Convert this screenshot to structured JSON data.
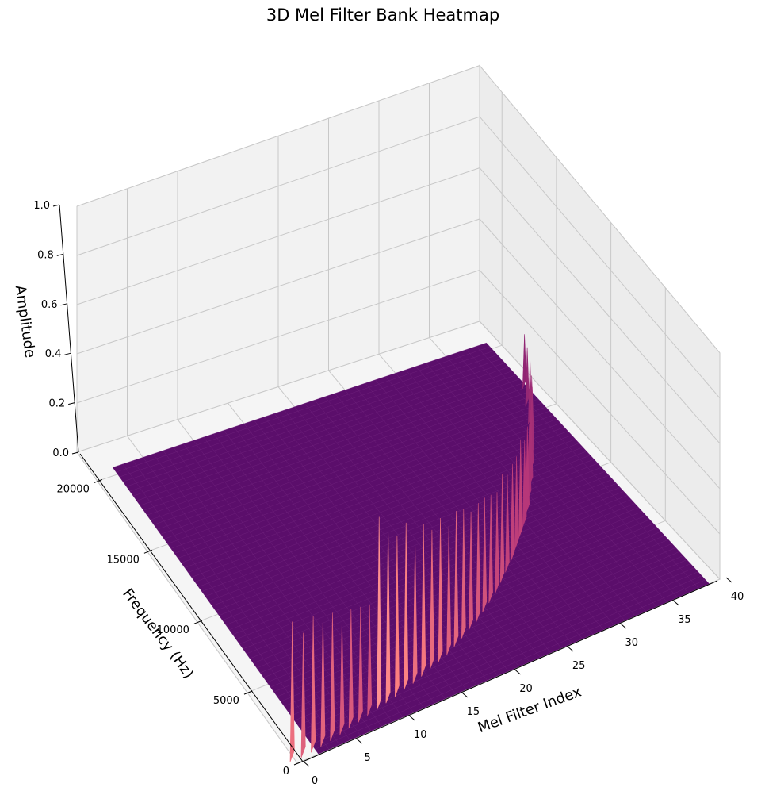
{
  "chart_data": {
    "type": "surface",
    "title": "3D Mel Filter Bank Heatmap",
    "xlabel": "Mel Filter Index",
    "ylabel": "Frequency (Hz)",
    "zlabel": "Amplitude",
    "x_ticks": [
      0,
      5,
      10,
      15,
      20,
      25,
      30,
      35,
      40
    ],
    "y_ticks": [
      0,
      5000,
      10000,
      15000,
      20000
    ],
    "z_ticks": [
      "0.0",
      "0.2",
      "0.4",
      "0.6",
      "0.8",
      "1.0"
    ],
    "xlim": [
      0,
      40
    ],
    "ylim": [
      0,
      22050
    ],
    "zlim": [
      0,
      1
    ],
    "grid": true,
    "colormap": "magma",
    "filter_count": 40,
    "surface_base_color": "#5b0e6b",
    "peak_color": "#ff9999",
    "series": [
      {
        "values": [
          {
            "x": 0,
            "peak_hz": 500,
            "amplitude": 0.62
          },
          {
            "x": 1,
            "peak_hz": 450,
            "amplitude": 0.55
          },
          {
            "x": 2,
            "peak_hz": 520,
            "amplitude": 0.6
          },
          {
            "x": 3,
            "peak_hz": 600,
            "amplitude": 0.57
          },
          {
            "x": 4,
            "peak_hz": 700,
            "amplitude": 0.56
          },
          {
            "x": 5,
            "peak_hz": 800,
            "amplitude": 0.5
          },
          {
            "x": 6,
            "peak_hz": 950,
            "amplitude": 0.52
          },
          {
            "x": 7,
            "peak_hz": 1050,
            "amplitude": 0.5
          },
          {
            "x": 8,
            "peak_hz": 1200,
            "amplitude": 0.48
          },
          {
            "x": 9,
            "peak_hz": 1300,
            "amplitude": 0.85
          },
          {
            "x": 10,
            "peak_hz": 1450,
            "amplitude": 0.78
          },
          {
            "x": 11,
            "peak_hz": 1600,
            "amplitude": 0.7
          },
          {
            "x": 12,
            "peak_hz": 1750,
            "amplitude": 0.73
          },
          {
            "x": 13,
            "peak_hz": 1900,
            "amplitude": 0.62
          },
          {
            "x": 14,
            "peak_hz": 2100,
            "amplitude": 0.66
          },
          {
            "x": 15,
            "peak_hz": 2300,
            "amplitude": 0.6
          },
          {
            "x": 16,
            "peak_hz": 2500,
            "amplitude": 0.62
          },
          {
            "x": 17,
            "peak_hz": 2700,
            "amplitude": 0.55
          },
          {
            "x": 18,
            "peak_hz": 3000,
            "amplitude": 0.58
          },
          {
            "x": 19,
            "peak_hz": 3300,
            "amplitude": 0.55
          },
          {
            "x": 20,
            "peak_hz": 3600,
            "amplitude": 0.5
          },
          {
            "x": 21,
            "peak_hz": 3900,
            "amplitude": 0.5
          },
          {
            "x": 22,
            "peak_hz": 4300,
            "amplitude": 0.48
          },
          {
            "x": 23,
            "peak_hz": 4700,
            "amplitude": 0.45
          },
          {
            "x": 24,
            "peak_hz": 5100,
            "amplitude": 0.42
          },
          {
            "x": 25,
            "peak_hz": 5600,
            "amplitude": 0.45
          },
          {
            "x": 26,
            "peak_hz": 6100,
            "amplitude": 0.4
          },
          {
            "x": 27,
            "peak_hz": 6600,
            "amplitude": 0.4
          },
          {
            "x": 28,
            "peak_hz": 7200,
            "amplitude": 0.38
          },
          {
            "x": 29,
            "peak_hz": 7800,
            "amplitude": 0.4
          },
          {
            "x": 30,
            "peak_hz": 8400,
            "amplitude": 0.35
          },
          {
            "x": 31,
            "peak_hz": 9100,
            "amplitude": 0.35
          },
          {
            "x": 32,
            "peak_hz": 9900,
            "amplitude": 0.3
          },
          {
            "x": 33,
            "peak_hz": 10700,
            "amplitude": 0.3
          },
          {
            "x": 34,
            "peak_hz": 11600,
            "amplitude": 0.28
          },
          {
            "x": 35,
            "peak_hz": 12500,
            "amplitude": 0.27
          },
          {
            "x": 36,
            "peak_hz": 13500,
            "amplitude": 0.25
          },
          {
            "x": 37,
            "peak_hz": 14600,
            "amplitude": 0.25
          },
          {
            "x": 38,
            "peak_hz": 15800,
            "amplitude": 0.22
          },
          {
            "x": 39,
            "peak_hz": 17000,
            "amplitude": 0.2
          }
        ]
      }
    ]
  }
}
